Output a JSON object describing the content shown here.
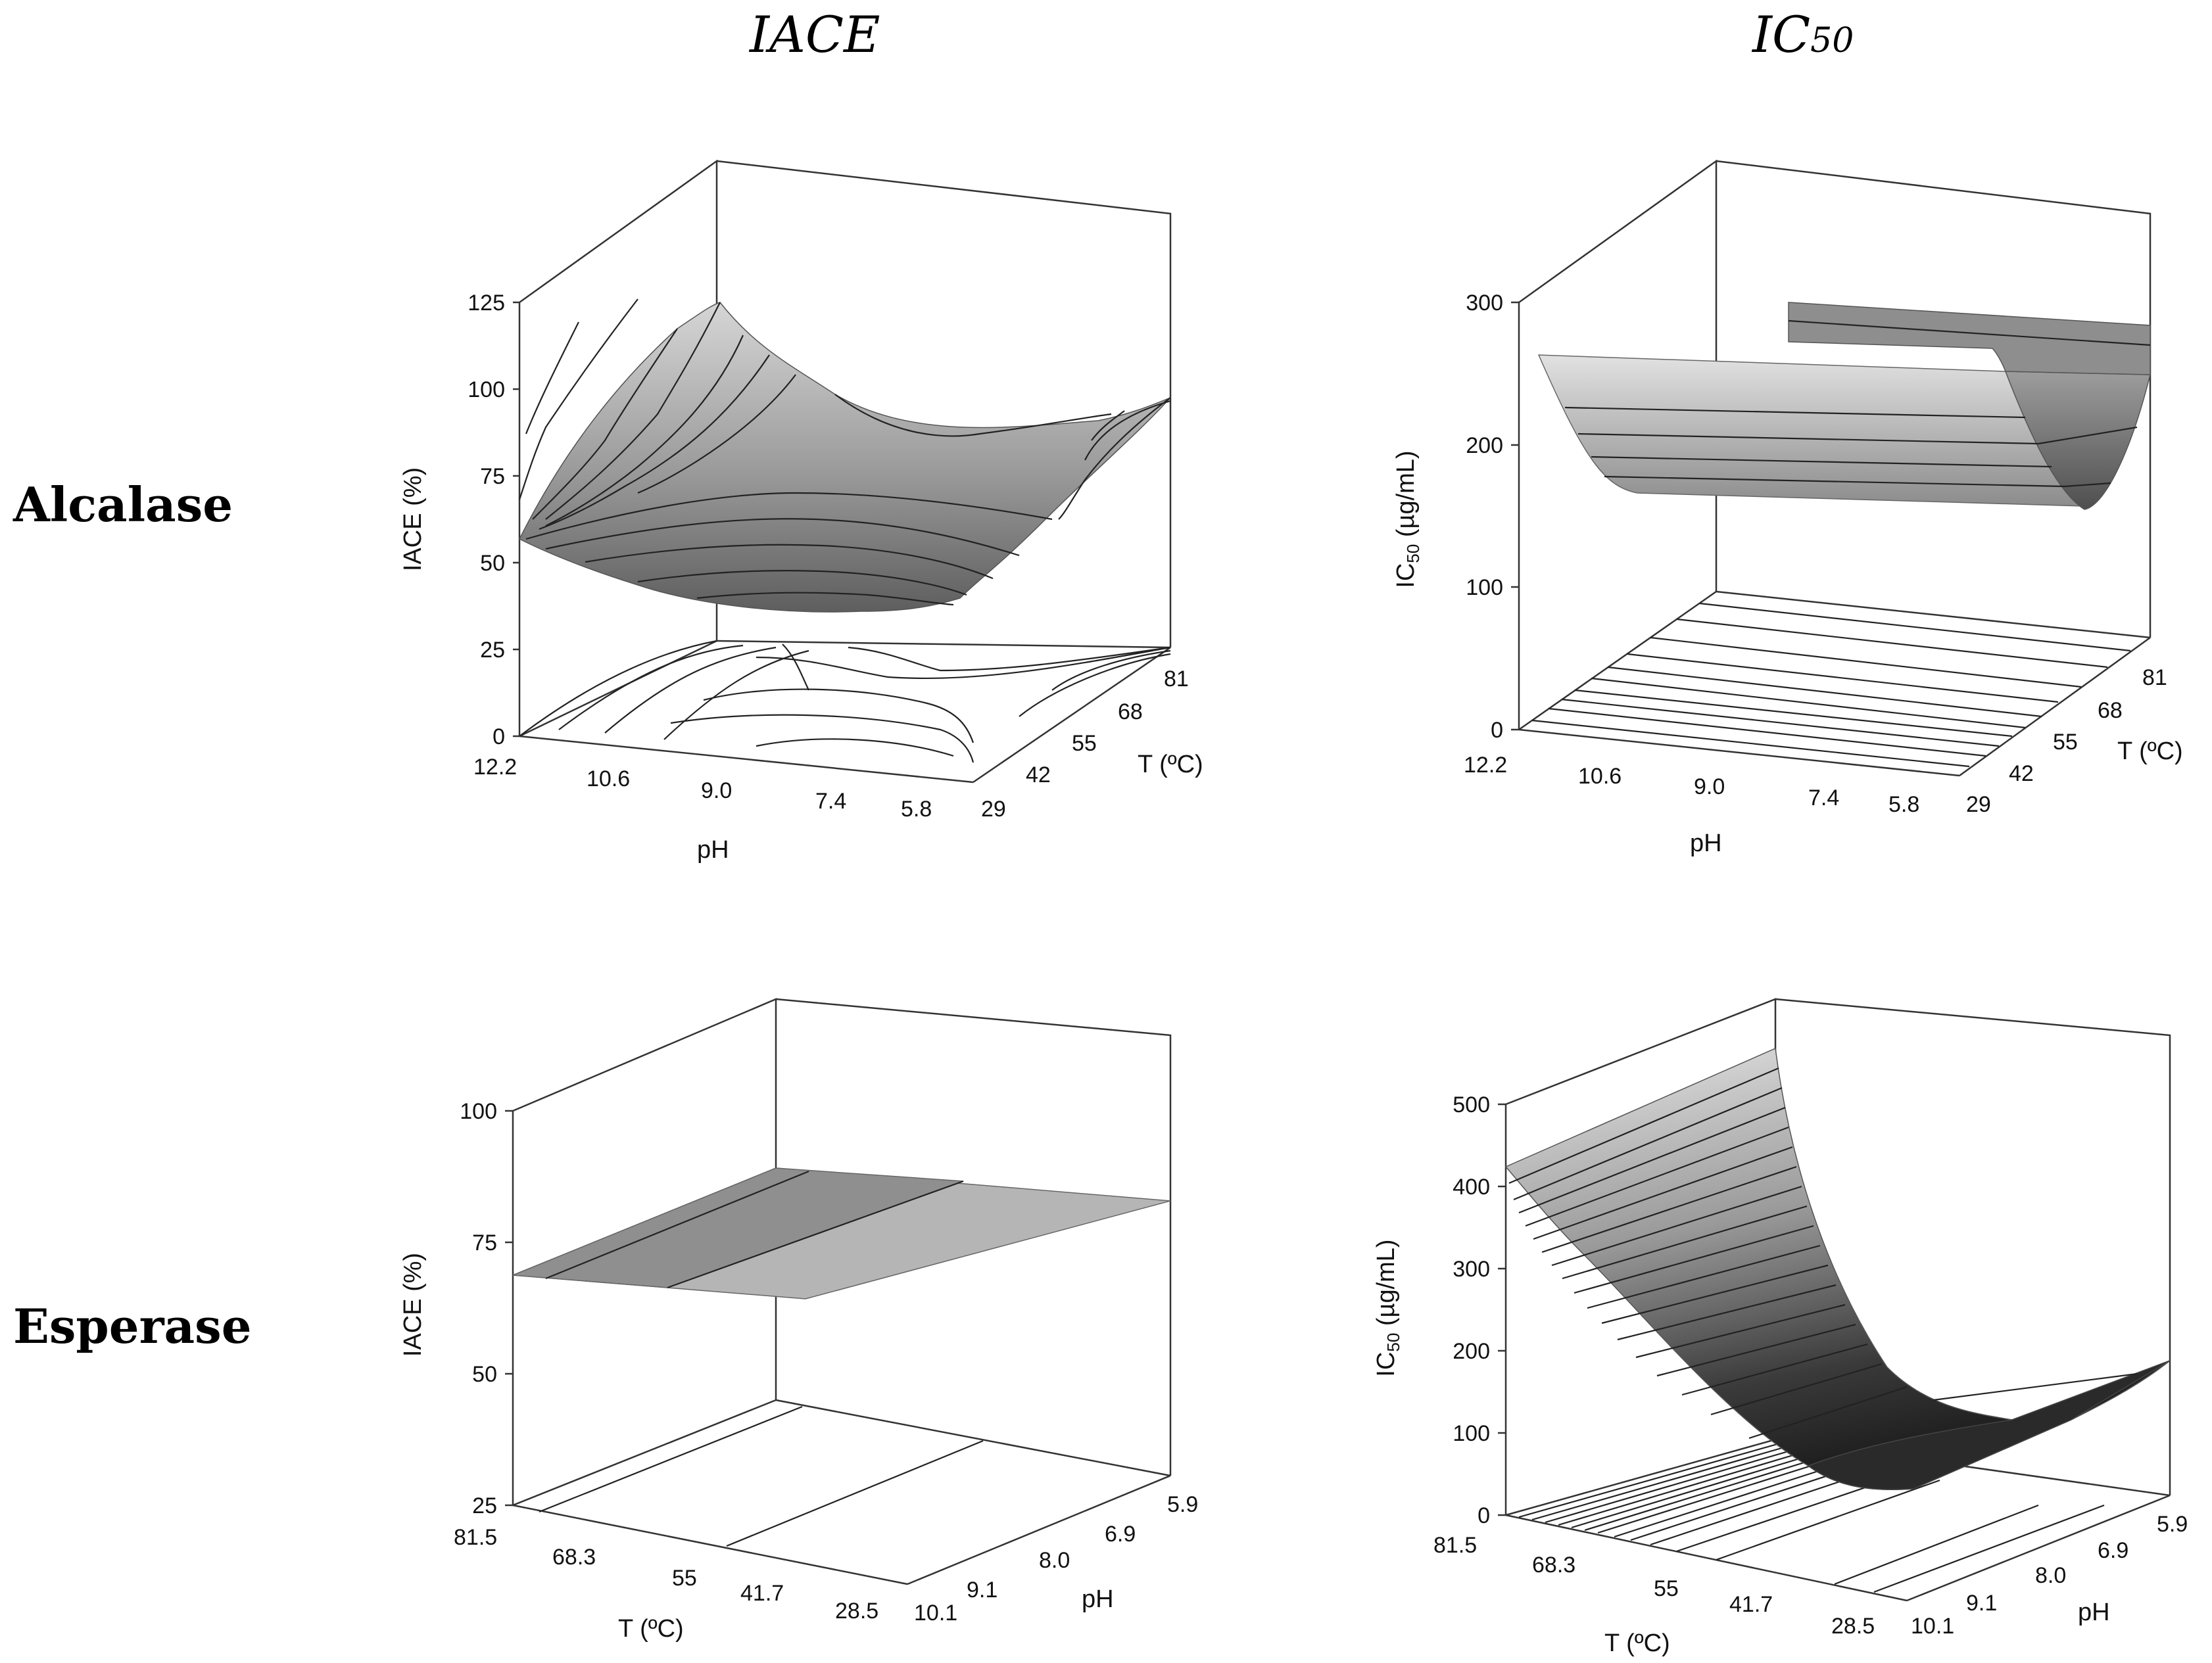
{
  "column_titles": {
    "left": "IACE",
    "right_main": "IC",
    "right_sub": "50"
  },
  "row_labels": {
    "top": "Alcalase",
    "bottom": "Esperase"
  },
  "chart_data": [
    {
      "type": "surface3d",
      "enzyme": "Alcalase",
      "response": "IACE",
      "zlabel": "IACE (%)",
      "zticks": [
        "0",
        "25",
        "50",
        "75",
        "100",
        "125"
      ],
      "xlabel": "pH",
      "xticks": [
        "12.2",
        "10.6",
        "9.0",
        "7.4",
        "5.8"
      ],
      "ylabel": "T (ºC)",
      "yticks": [
        "29",
        "42",
        "55",
        "68",
        "81"
      ],
      "zlim": [
        0,
        125
      ],
      "contours_on_floor": true
    },
    {
      "type": "surface3d",
      "enzyme": "Alcalase",
      "response": "IC50",
      "zlabel_main": "IC",
      "zlabel_sub": "50",
      "zlabel_rest": " (µg/mL)",
      "zticks": [
        "0",
        "100",
        "200",
        "300"
      ],
      "xlabel": "pH",
      "xticks": [
        "12.2",
        "10.6",
        "9.0",
        "7.4",
        "5.8"
      ],
      "ylabel": "T (ºC)",
      "yticks": [
        "29",
        "42",
        "55",
        "68",
        "81"
      ],
      "zlim": [
        0,
        300
      ],
      "contours_on_floor": true
    },
    {
      "type": "surface3d",
      "enzyme": "Esperase",
      "response": "IACE",
      "zlabel": "IACE (%)",
      "zticks": [
        "25",
        "50",
        "75",
        "100"
      ],
      "xlabel": "T (ºC)",
      "xticks": [
        "81.5",
        "68.3",
        "55",
        "41.7",
        "28.5"
      ],
      "ylabel": "pH",
      "yticks": [
        "10.1",
        "9.1",
        "8.0",
        "6.9",
        "5.9"
      ],
      "zlim": [
        25,
        100
      ],
      "contours_on_floor": true
    },
    {
      "type": "surface3d",
      "enzyme": "Esperase",
      "response": "IC50",
      "zlabel_main": "IC",
      "zlabel_sub": "50",
      "zlabel_rest": " (µg/mL)",
      "zticks": [
        "0",
        "100",
        "200",
        "300",
        "400",
        "500"
      ],
      "xlabel": "T (ºC)",
      "xticks": [
        "81.5",
        "68.3",
        "55",
        "41.7",
        "28.5"
      ],
      "ylabel": "pH",
      "yticks": [
        "10.1",
        "9.1",
        "8.0",
        "6.9",
        "5.9"
      ],
      "zlim": [
        0,
        500
      ],
      "contours_on_floor": true
    }
  ]
}
